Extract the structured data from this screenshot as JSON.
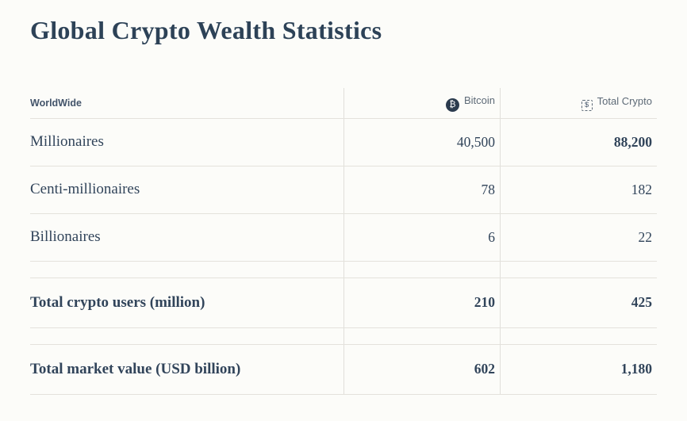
{
  "title": "Global Crypto Wealth Statistics",
  "table": {
    "header": {
      "region_label": "WorldWide",
      "bitcoin_icon_glyph": "₿",
      "bitcoin_label": "Bitcoin",
      "total_icon_glyph": "$",
      "total_label": "Total Crypto"
    },
    "rows": [
      {
        "label": "Millionaires",
        "bitcoin": "40,500",
        "total": "88,200"
      },
      {
        "label": "Centi-millionaires",
        "bitcoin": "78",
        "total": "182"
      },
      {
        "label": "Billionaires",
        "bitcoin": "6",
        "total": "22"
      },
      {
        "label": "Total crypto users (million)",
        "bitcoin": "210",
        "total": "425"
      },
      {
        "label": "Total market value (USD billion)",
        "bitcoin": "602",
        "total": "1,180"
      }
    ]
  },
  "colors": {
    "background": "#fcfcf9",
    "text": "#31445a",
    "muted": "#5d6a77",
    "border": "#e4e2dc",
    "bitcoin_icon_bg": "#2b3b4e"
  },
  "chart_data": {
    "type": "table",
    "title": "Global Crypto Wealth Statistics",
    "columns": [
      "WorldWide",
      "Bitcoin",
      "Total Crypto"
    ],
    "rows": [
      [
        "Millionaires",
        40500,
        88200
      ],
      [
        "Centi-millionaires",
        78,
        182
      ],
      [
        "Billionaires",
        6,
        22
      ],
      [
        "Total crypto users (million)",
        210,
        425
      ],
      [
        "Total market value (USD billion)",
        602,
        1180
      ]
    ],
    "notes": "Static statistics table; Millionaires Total Crypto value and the two total rows are emphasized in bold."
  }
}
